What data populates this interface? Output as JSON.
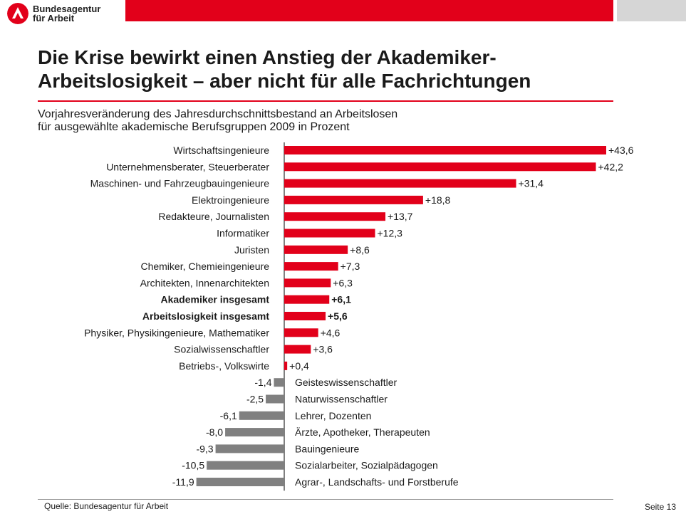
{
  "header": {
    "logo_line1": "Bundesagentur",
    "logo_line2": "für Arbeit",
    "brand_color": "#e2001a"
  },
  "title_line1": "Die Krise bewirkt einen Anstieg der Akademiker-",
  "title_line2": "Arbeitslosigkeit – aber nicht für alle Fachrichtungen",
  "subtitle_line1": "Vorjahresveränderung des Jahresdurchschnittsbestand an Arbeitslosen",
  "subtitle_line2": "für ausgewählte akademische Berufsgruppen 2009 in Prozent",
  "chart_data": {
    "type": "bar",
    "orientation": "horizontal",
    "positive_color": "#e2001a",
    "negative_color": "#808080",
    "categories": [
      "Wirtschaftsingenieure",
      "Unternehmensberater, Steuerberater",
      "Maschinen- und Fahrzeugbauingenieure",
      "Elektroingenieure",
      "Redakteure, Journalisten",
      "Informatiker",
      "Juristen",
      "Chemiker, Chemieingenieure",
      "Architekten, Innenarchitekten",
      "Akademiker insgesamt",
      "Arbeitslosigkeit insgesamt",
      "Physiker, Physikingenieure, Mathematiker",
      "Sozialwissenschaftler",
      "Betriebs-, Volkswirte",
      "Geisteswissenschaftler",
      "Naturwissenschaftler",
      "Lehrer, Dozenten",
      "Ärzte, Apotheker, Therapeuten",
      "Bauingenieure",
      "Sozialarbeiter, Sozialpädagogen",
      "Agrar-, Landschafts- und Forstberufe"
    ],
    "values": [
      43.6,
      42.2,
      31.4,
      18.8,
      13.7,
      12.3,
      8.6,
      7.3,
      6.3,
      6.1,
      5.6,
      4.6,
      3.6,
      0.4,
      -1.4,
      -2.5,
      -6.1,
      -8.0,
      -9.3,
      -10.5,
      -11.9
    ],
    "value_labels": [
      "+43,6",
      "+42,2",
      "+31,4",
      "+18,8",
      "+13,7",
      "+12,3",
      "+8,6",
      "+7,3",
      "+6,3",
      "+6,1",
      "+5,6",
      "+4,6",
      "+3,6",
      "+0,4",
      "-1,4",
      "-2,5",
      "-6,1",
      "-8,0",
      "-9,3",
      "-10,5",
      "-11,9"
    ],
    "bold_categories": [
      "Akademiker insgesamt",
      "Arbeitslosigkeit insgesamt"
    ]
  },
  "footer": {
    "source": "Quelle: Bundesagentur für Arbeit",
    "page": "Seite 13"
  }
}
